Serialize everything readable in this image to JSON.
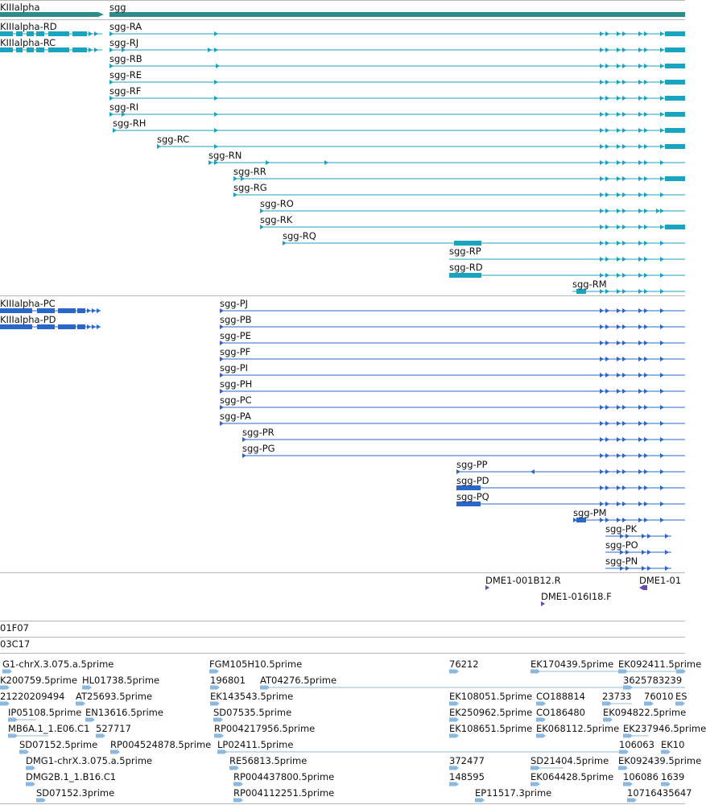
{
  "colors": {
    "gene_bar": "#2e8b8a",
    "rna": "#1aa3bf",
    "protein": "#2b66c9",
    "oligo": "#6a48b8",
    "est": "#8ab8de",
    "separator": "#b7b7b7"
  },
  "tracks": {
    "genes": {
      "left_gene_label": "KIIIalpha",
      "sgg_label": "sgg"
    },
    "transcripts": {
      "left_labels": [
        "KIIIalpha-RD",
        "KIIIalpha-RC"
      ],
      "sgg_labels": [
        "sgg-RA",
        "sgg-RJ",
        "sgg-RB",
        "sgg-RE",
        "sgg-RF",
        "sgg-RI",
        "sgg-RH",
        "sgg-RC",
        "sgg-RN",
        "sgg-RR",
        "sgg-RG",
        "sgg-RO",
        "sgg-RK",
        "sgg-RQ",
        "sgg-RP",
        "sgg-RD",
        "sgg-RM"
      ]
    },
    "proteins": {
      "left_labels": [
        "KIIIalpha-PC",
        "KIIIalpha-PD"
      ],
      "sgg_labels": [
        "sgg-PJ",
        "sgg-PB",
        "sgg-PE",
        "sgg-PF",
        "sgg-PI",
        "sgg-PH",
        "sgg-PC",
        "sgg-PA",
        "sgg-PR",
        "sgg-PG",
        "sgg-PP",
        "sgg-PD",
        "sgg-PQ",
        "sgg-PM",
        "sgg-PK",
        "sgg-PO",
        "sgg-PN"
      ]
    },
    "oligos": {
      "labels": [
        "DME1-001B12.R",
        "DME1-016I18.F",
        "DME1-01"
      ]
    },
    "clones": {
      "labels": [
        "01F07",
        "03C17"
      ]
    },
    "ests": {
      "labels": [
        "G1-chrX.3.075.a.5prime",
        "FGM105H10.5prime",
        "76212",
        "EK170439.5prime",
        "EK092411.5prime",
        "K200759.5prime",
        "HL01738.5prime",
        "196801",
        "AT04276.5prime",
        "3625783239",
        "21220209494",
        "AT25693.5prime",
        "EK143543.5prime",
        "EK108051.5prime",
        "CO188814",
        "23733",
        "76010",
        "ES",
        "IP05108.5prime",
        "EN13616.5prime",
        "SD07535.5prime",
        "EK250962.5prime",
        "CO186480",
        "EK094822.5prime",
        "MB6A.1_1.E06.C1",
        "527717",
        "RP004217956.5prime",
        "EK108651.5prime",
        "EK068112.5prime",
        "EK237946.5prime",
        "SD07152.5prime",
        "RP004524878.5prime",
        "LP02411.5prime",
        "106063",
        "EK10",
        "DMG1-chrX.3.075.a.5prime",
        "RE56813.5prime",
        "372477",
        "SD21404.5prime",
        "EK092439.5prime",
        "DMG2B.1_1.B16.C1",
        "RP004437800.5prime",
        "148595",
        "EK064428.5prime",
        "106086",
        "1639",
        "SD07152.3prime",
        "RP004112251.5prime",
        "EP11517.3prime",
        "10716435647"
      ]
    }
  }
}
